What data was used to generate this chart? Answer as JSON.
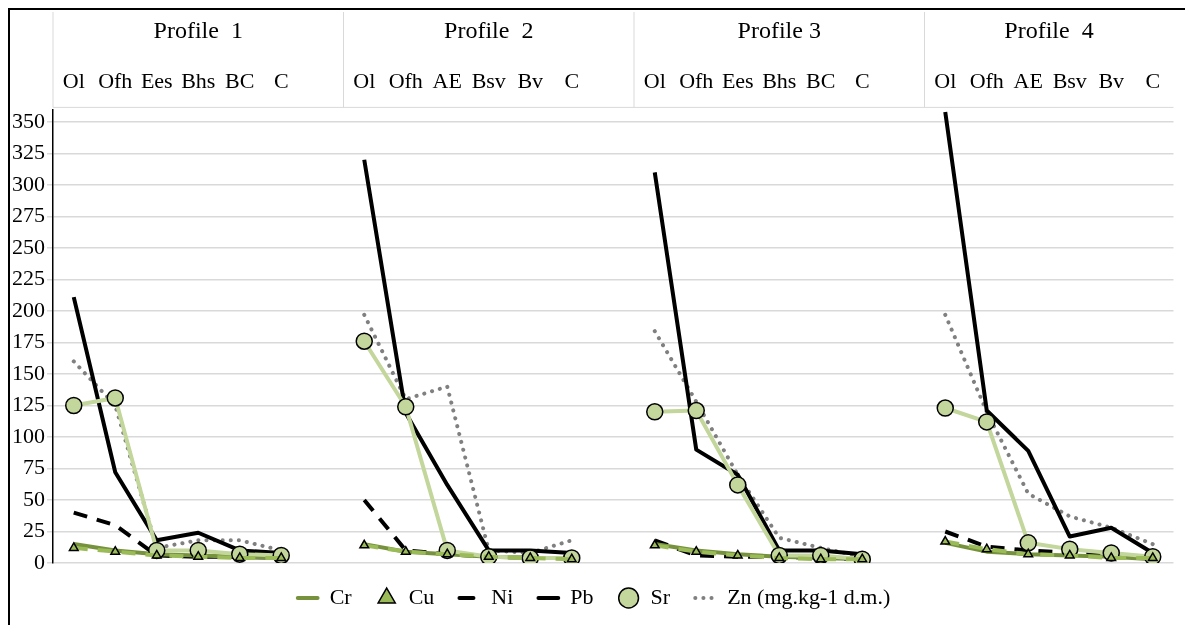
{
  "chart_data": {
    "type": "line",
    "categories": [
      "Ol",
      "Ofh",
      "Ees",
      "Bhs",
      "BC",
      "C",
      null,
      "Ol",
      "Ofh",
      "AE",
      "Bsv",
      "Bv",
      "C",
      null,
      "Ol",
      "Ofh",
      "Ees",
      "Bhs",
      "BC",
      "C",
      null,
      "Ol",
      "Ofh",
      "AE",
      "Bsv",
      "Bv",
      "C"
    ],
    "annotations": [
      "Profile  1",
      "Profile  2",
      "Profile 3",
      "Profile  4"
    ],
    "series": [
      {
        "name": "Cr",
        "color": "#76923c",
        "line_style": "solid",
        "marker": "none",
        "values": [
          15,
          10,
          7,
          6,
          5,
          4,
          null,
          15,
          9,
          7,
          5,
          4,
          4,
          null,
          15,
          10,
          7,
          5,
          4,
          3,
          null,
          16,
          9,
          7,
          6,
          5,
          3
        ]
      },
      {
        "name": "Cu",
        "color": "#9bbb59",
        "line_style": "dashed",
        "marker": "triangle",
        "values": [
          12,
          9,
          6,
          5,
          4,
          4,
          null,
          14,
          9,
          7,
          5,
          4,
          3,
          null,
          14,
          9,
          6,
          4,
          3,
          3,
          null,
          17,
          11,
          7,
          6,
          4,
          4
        ]
      },
      {
        "name": "Ni",
        "color": "#000000",
        "line_style": "dashed",
        "marker": "none",
        "values": [
          40,
          30,
          6,
          5,
          5,
          4,
          null,
          50,
          10,
          7,
          5,
          4,
          4,
          null,
          18,
          6,
          5,
          5,
          4,
          3,
          null,
          25,
          13,
          10,
          8,
          6,
          4
        ]
      },
      {
        "name": "Pb",
        "color": "#000000",
        "line_style": "solid",
        "marker": "none",
        "values": [
          211,
          72,
          18,
          24,
          10,
          8,
          null,
          320,
          119,
          62,
          10,
          10,
          8,
          null,
          310,
          90,
          70,
          10,
          10,
          7,
          null,
          358,
          121,
          89,
          21,
          28,
          8
        ]
      },
      {
        "name": "Sr",
        "color": "#c3d69b",
        "line_style": "solid",
        "marker": "circle",
        "values": [
          125,
          131,
          10,
          10,
          7,
          6,
          null,
          176,
          124,
          10,
          5,
          4,
          4,
          null,
          120,
          121,
          62,
          6,
          6,
          3,
          null,
          123,
          112,
          16,
          11,
          8,
          5
        ]
      },
      {
        "name": "Zn (mg.kg-1 d.m.)",
        "color": "#808080",
        "line_style": "dotted",
        "marker": "none",
        "values": [
          160,
          125,
          12,
          18,
          18,
          10,
          null,
          197,
          130,
          140,
          10,
          8,
          18,
          null,
          184,
          128,
          70,
          20,
          12,
          5,
          null,
          197,
          120,
          55,
          37,
          28,
          15
        ]
      }
    ],
    "ylim": [
      0,
      360
    ],
    "yticks": [
      0,
      25,
      50,
      75,
      100,
      125,
      150,
      175,
      200,
      225,
      250,
      275,
      300,
      325,
      350
    ],
    "grid": "y",
    "legend": "bottom"
  }
}
